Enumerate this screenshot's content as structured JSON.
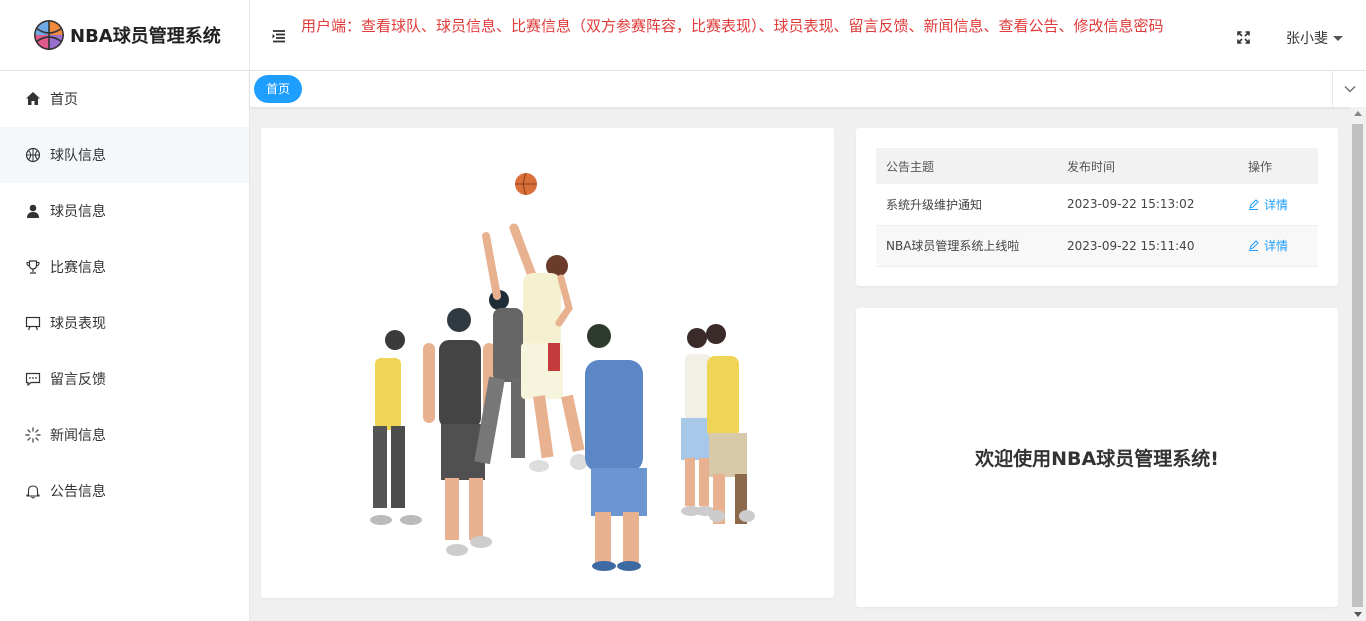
{
  "app": {
    "title": "NBA球员管理系统"
  },
  "header": {
    "banner": "用户端：查看球队、球员信息、比赛信息（双方参赛阵容，比赛表现）、球员表现、留言反馈、新闻信息、查看公告、修改信息密码",
    "user_name": "张小斐"
  },
  "sidebar": {
    "items": [
      {
        "label": "首页",
        "icon": "home-icon"
      },
      {
        "label": "球队信息",
        "icon": "basketball-icon"
      },
      {
        "label": "球员信息",
        "icon": "user-icon"
      },
      {
        "label": "比赛信息",
        "icon": "trophy-icon"
      },
      {
        "label": "球员表现",
        "icon": "presentation-icon"
      },
      {
        "label": "留言反馈",
        "icon": "message-icon"
      },
      {
        "label": "新闻信息",
        "icon": "loading-icon"
      },
      {
        "label": "公告信息",
        "icon": "bell-icon"
      }
    ]
  },
  "tabs": [
    {
      "label": "首页"
    }
  ],
  "notice": {
    "columns": [
      "公告主题",
      "发布时间",
      "操作"
    ],
    "rows": [
      {
        "title": "系统升级维护通知",
        "time": "2023-09-22 15:13:02",
        "action": "详情"
      },
      {
        "title": "NBA球员管理系统上线啦",
        "time": "2023-09-22 15:11:40",
        "action": "详情"
      }
    ]
  },
  "welcome": {
    "text": "欢迎使用NBA球员管理系统!"
  },
  "colors": {
    "accent": "#1e9fff",
    "banner_text": "#e03b3b"
  }
}
